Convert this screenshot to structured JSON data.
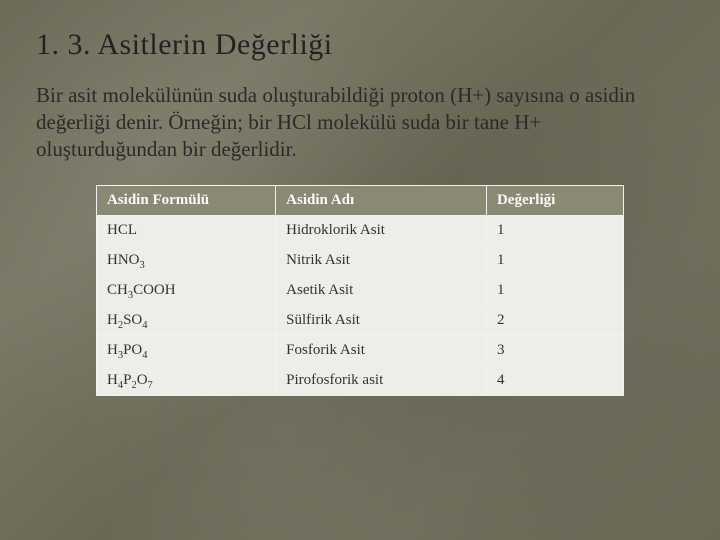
{
  "slide": {
    "title": "1. 3. Asitlerin Değerliği",
    "body": "Bir asit molekülünün suda oluşturabildiği proton (H+) sayısına o asidin değerliği denir. Örneğin; bir HCl molekülü suda bir tane H+ oluşturduğundan bir değerlidir.",
    "background_color": "#6b6856",
    "title_fontsize": 30,
    "body_fontsize": 21,
    "text_color": "#2a2a2a"
  },
  "table": {
    "type": "table",
    "header_bg": "#8a8a74",
    "header_text_color": "#fafaf7",
    "cell_bg": "#eeeee8",
    "cell_text_color": "#333333",
    "border_color": "#f2f2f0",
    "fontsize": 15,
    "column_widths_pct": [
      34,
      40,
      26
    ],
    "columns": [
      "Asidin Formülü",
      "Asidin Adı",
      "Değerliği"
    ],
    "rows": [
      {
        "formula_html": "HCL",
        "name": "Hidroklorik Asit",
        "valence": "1"
      },
      {
        "formula_html": "HNO<sub>3</sub>",
        "name": "Nitrik Asit",
        "valence": "1"
      },
      {
        "formula_html": "CH<sub>3</sub>COOH",
        "name": "Asetik Asit",
        "valence": "1"
      },
      {
        "formula_html": "H<sub>2</sub>SO<sub>4</sub>",
        "name": "Sülfirik Asit",
        "valence": "2"
      },
      {
        "formula_html": "H<sub>3</sub>PO<sub>4</sub>",
        "name": "Fosforik Asit",
        "valence": "3"
      },
      {
        "formula_html": "H<sub>4</sub>P<sub>2</sub>O<sub>7</sub>",
        "name": "Pirofosforik asit",
        "valence": "4"
      }
    ]
  }
}
